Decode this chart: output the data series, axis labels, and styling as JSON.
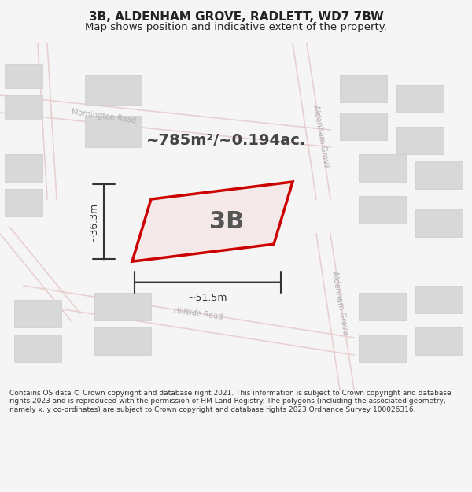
{
  "title": "3B, ALDENHAM GROVE, RADLETT, WD7 7BW",
  "subtitle": "Map shows position and indicative extent of the property.",
  "area_text": "~785m²/~0.194ac.",
  "label_3b": "3B",
  "dim_width": "~51.5m",
  "dim_height": "~36.3m",
  "footer": "Contains OS data © Crown copyright and database right 2021. This information is subject to Crown copyright and database rights 2023 and is reproduced with the permission of HM Land Registry. The polygons (including the associated geometry, namely x, y co-ordinates) are subject to Crown copyright and database rights 2023 Ordnance Survey 100026316.",
  "bg_color": "#f5f5f5",
  "map_bg": "#f0eeee",
  "street_color": "#e8d0d0",
  "building_fill": "#d8d8d8",
  "building_edge": "#cccccc",
  "plot_fill": "#f5e8e8",
  "plot_edge": "#cc0000",
  "road_label_color": "#b0b0b0",
  "dim_color": "#333333",
  "footer_color": "#333333",
  "title_color": "#222222"
}
